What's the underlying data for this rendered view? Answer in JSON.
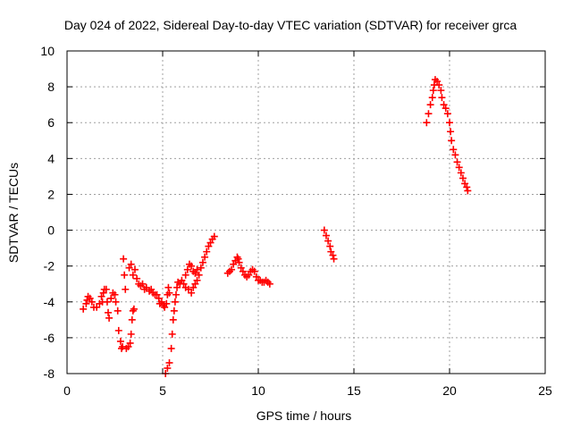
{
  "chart_data": {
    "type": "scatter",
    "title": "Day 024 of 2022, Sidereal Day-to-day VTEC variation (SDTVAR) for receiver grca",
    "xlabel": "GPS time / hours",
    "ylabel": "SDTVAR / TECUs",
    "xlim": [
      0,
      25
    ],
    "ylim": [
      -8,
      10
    ],
    "xticks": [
      0,
      5,
      10,
      15,
      20,
      25
    ],
    "yticks": [
      -8,
      -6,
      -4,
      -2,
      0,
      2,
      4,
      6,
      8,
      10
    ],
    "grid": true,
    "marker": "+",
    "color": "#ff0000",
    "series": [
      {
        "name": "SDTVAR",
        "points": [
          [
            0.85,
            -4.4
          ],
          [
            1.0,
            -4.1
          ],
          [
            1.05,
            -3.9
          ],
          [
            1.1,
            -3.7
          ],
          [
            1.2,
            -3.8
          ],
          [
            1.3,
            -4.0
          ],
          [
            1.4,
            -4.3
          ],
          [
            1.55,
            -4.3
          ],
          [
            1.7,
            -4.1
          ],
          [
            1.8,
            -3.7
          ],
          [
            1.85,
            -4.0
          ],
          [
            1.9,
            -3.5
          ],
          [
            1.95,
            -3.3
          ],
          [
            2.05,
            -3.3
          ],
          [
            2.1,
            -4.0
          ],
          [
            2.15,
            -4.6
          ],
          [
            2.2,
            -4.9
          ],
          [
            2.3,
            -3.8
          ],
          [
            2.4,
            -3.5
          ],
          [
            2.5,
            -3.6
          ],
          [
            2.55,
            -4.0
          ],
          [
            2.65,
            -4.5
          ],
          [
            2.7,
            -5.6
          ],
          [
            2.8,
            -6.2
          ],
          [
            2.85,
            -6.6
          ],
          [
            2.9,
            -6.5
          ],
          [
            2.95,
            -1.6
          ],
          [
            3.0,
            -2.5
          ],
          [
            3.05,
            -3.3
          ],
          [
            3.1,
            -6.6
          ],
          [
            3.2,
            -6.5
          ],
          [
            3.3,
            -6.3
          ],
          [
            3.35,
            -5.8
          ],
          [
            3.4,
            -5.0
          ],
          [
            3.45,
            -4.5
          ],
          [
            3.5,
            -4.4
          ],
          [
            3.25,
            -2.1
          ],
          [
            3.35,
            -1.9
          ],
          [
            3.45,
            -2.5
          ],
          [
            3.55,
            -2.2
          ],
          [
            3.65,
            -2.7
          ],
          [
            3.75,
            -3.0
          ],
          [
            3.85,
            -3.1
          ],
          [
            3.95,
            -3.0
          ],
          [
            4.05,
            -3.3
          ],
          [
            4.15,
            -3.2
          ],
          [
            4.3,
            -3.4
          ],
          [
            4.4,
            -3.3
          ],
          [
            4.5,
            -3.5
          ],
          [
            4.6,
            -3.6
          ],
          [
            4.7,
            -3.6
          ],
          [
            4.8,
            -3.8
          ],
          [
            4.85,
            -4.1
          ],
          [
            4.95,
            -4.0
          ],
          [
            5.05,
            -4.2
          ],
          [
            5.1,
            -4.3
          ],
          [
            5.2,
            -4.1
          ],
          [
            5.25,
            -3.6
          ],
          [
            5.3,
            -3.2
          ],
          [
            5.35,
            -3.5
          ],
          [
            5.15,
            -8.0
          ],
          [
            5.25,
            -7.7
          ],
          [
            5.35,
            -7.4
          ],
          [
            5.45,
            -6.6
          ],
          [
            5.5,
            -5.8
          ],
          [
            5.55,
            -5.0
          ],
          [
            5.6,
            -4.5
          ],
          [
            5.65,
            -4.0
          ],
          [
            5.7,
            -3.6
          ],
          [
            5.75,
            -3.2
          ],
          [
            5.8,
            -2.9
          ],
          [
            5.9,
            -3.0
          ],
          [
            6.0,
            -2.8
          ],
          [
            6.1,
            -3.0
          ],
          [
            6.2,
            -2.5
          ],
          [
            6.3,
            -2.2
          ],
          [
            6.4,
            -1.9
          ],
          [
            6.5,
            -2.0
          ],
          [
            6.6,
            -2.3
          ],
          [
            6.7,
            -2.4
          ],
          [
            6.8,
            -2.2
          ],
          [
            6.2,
            -3.2
          ],
          [
            6.35,
            -3.3
          ],
          [
            6.5,
            -3.5
          ],
          [
            6.6,
            -3.2
          ],
          [
            6.7,
            -3.0
          ],
          [
            6.8,
            -2.8
          ],
          [
            6.9,
            -2.5
          ],
          [
            7.0,
            -2.1
          ],
          [
            7.1,
            -1.8
          ],
          [
            7.2,
            -1.5
          ],
          [
            7.3,
            -1.2
          ],
          [
            7.4,
            -0.9
          ],
          [
            7.5,
            -0.7
          ],
          [
            7.6,
            -0.5
          ],
          [
            7.7,
            -0.35
          ],
          [
            8.4,
            -2.4
          ],
          [
            8.5,
            -2.3
          ],
          [
            8.6,
            -2.2
          ],
          [
            8.7,
            -1.9
          ],
          [
            8.8,
            -1.7
          ],
          [
            8.9,
            -1.5
          ],
          [
            8.95,
            -1.6
          ],
          [
            9.0,
            -1.8
          ],
          [
            9.1,
            -2.1
          ],
          [
            9.2,
            -2.3
          ],
          [
            9.3,
            -2.5
          ],
          [
            9.4,
            -2.6
          ],
          [
            9.5,
            -2.5
          ],
          [
            9.6,
            -2.3
          ],
          [
            9.7,
            -2.2
          ],
          [
            9.8,
            -2.3
          ],
          [
            9.9,
            -2.6
          ],
          [
            10.0,
            -2.8
          ],
          [
            10.1,
            -2.8
          ],
          [
            10.2,
            -2.9
          ],
          [
            10.3,
            -2.9
          ],
          [
            10.4,
            -2.8
          ],
          [
            10.5,
            -2.9
          ],
          [
            10.6,
            -3.0
          ],
          [
            13.45,
            0.0
          ],
          [
            13.55,
            -0.3
          ],
          [
            13.65,
            -0.6
          ],
          [
            13.75,
            -0.9
          ],
          [
            13.8,
            -1.2
          ],
          [
            13.9,
            -1.4
          ],
          [
            13.95,
            -1.6
          ],
          [
            18.8,
            6.0
          ],
          [
            18.9,
            6.5
          ],
          [
            19.0,
            7.0
          ],
          [
            19.1,
            7.4
          ],
          [
            19.15,
            7.8
          ],
          [
            19.2,
            8.1
          ],
          [
            19.25,
            8.4
          ],
          [
            19.35,
            8.3
          ],
          [
            19.45,
            8.1
          ],
          [
            19.55,
            7.8
          ],
          [
            19.6,
            7.4
          ],
          [
            19.7,
            7.0
          ],
          [
            19.8,
            6.8
          ],
          [
            19.9,
            6.5
          ],
          [
            20.0,
            6.0
          ],
          [
            20.05,
            5.5
          ],
          [
            20.1,
            5.0
          ],
          [
            20.2,
            4.5
          ],
          [
            20.3,
            4.2
          ],
          [
            20.4,
            3.8
          ],
          [
            20.5,
            3.5
          ],
          [
            20.6,
            3.2
          ],
          [
            20.7,
            2.9
          ],
          [
            20.8,
            2.6
          ],
          [
            20.9,
            2.4
          ],
          [
            20.95,
            2.2
          ]
        ]
      }
    ]
  }
}
